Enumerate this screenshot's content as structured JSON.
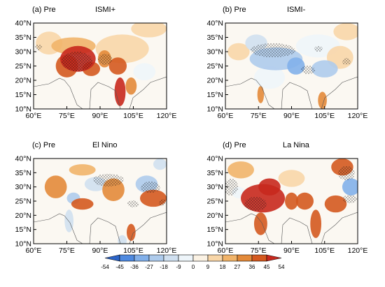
{
  "chart_data": {
    "type": "heatmap",
    "panels": [
      {
        "label": "(a) Pre",
        "title": "ISMI+",
        "blobs": [
          {
            "lon": 80,
            "lat": 27.5,
            "rx": 8,
            "ry": 4.5,
            "v": 45
          },
          {
            "lon": 75,
            "lat": 25,
            "rx": 5,
            "ry": 4,
            "v": 36
          },
          {
            "lon": 86,
            "lat": 24,
            "rx": 4,
            "ry": 2.5,
            "v": 36
          },
          {
            "lon": 92,
            "lat": 27.5,
            "rx": 3,
            "ry": 3,
            "v": 27
          },
          {
            "lon": 98,
            "lat": 25,
            "rx": 4,
            "ry": 3,
            "v": 36
          },
          {
            "lon": 99,
            "lat": 16,
            "rx": 2.5,
            "ry": 5,
            "v": 45
          },
          {
            "lon": 104,
            "lat": 18,
            "rx": 2.5,
            "ry": 3,
            "v": 27
          },
          {
            "lon": 78,
            "lat": 32,
            "rx": 10,
            "ry": 3,
            "v": 18
          },
          {
            "lon": 100,
            "lat": 31,
            "rx": 12,
            "ry": 5,
            "v": 9
          },
          {
            "lon": 67,
            "lat": 33,
            "rx": 6,
            "ry": 4,
            "v": 9
          },
          {
            "lon": 112,
            "lat": 38,
            "rx": 8,
            "ry": 3,
            "v": 9
          },
          {
            "lon": 110,
            "lat": 23,
            "rx": 5,
            "ry": 3,
            "v": -9
          }
        ]
      },
      {
        "label": "(b) Pre",
        "title": "ISMI-",
        "blobs": [
          {
            "lon": 83,
            "lat": 27.5,
            "rx": 12,
            "ry": 4,
            "v": -27
          },
          {
            "lon": 92,
            "lat": 25,
            "rx": 4,
            "ry": 3,
            "v": -36
          },
          {
            "lon": 105,
            "lat": 24,
            "rx": 6,
            "ry": 3,
            "v": -27
          },
          {
            "lon": 74,
            "lat": 33,
            "rx": 5,
            "ry": 3,
            "v": -18
          },
          {
            "lon": 102,
            "lat": 32,
            "rx": 10,
            "ry": 4,
            "v": -9
          },
          {
            "lon": 80,
            "lat": 21,
            "rx": 7,
            "ry": 4,
            "v": -9
          },
          {
            "lon": 76,
            "lat": 15,
            "rx": 1.5,
            "ry": 3,
            "v": 27
          },
          {
            "lon": 104,
            "lat": 13,
            "rx": 2,
            "ry": 3,
            "v": 27
          },
          {
            "lon": 112,
            "lat": 28,
            "rx": 6,
            "ry": 4,
            "v": 9
          },
          {
            "lon": 66,
            "lat": 30,
            "rx": 5,
            "ry": 3,
            "v": 9
          },
          {
            "lon": 115,
            "lat": 37,
            "rx": 6,
            "ry": 3,
            "v": 9
          }
        ]
      },
      {
        "label": "(c) Pre",
        "title": "El Nino",
        "blobs": [
          {
            "lon": 70,
            "lat": 30,
            "rx": 5,
            "ry": 4,
            "v": 27
          },
          {
            "lon": 82,
            "lat": 36,
            "rx": 6,
            "ry": 2,
            "v": 18
          },
          {
            "lon": 96,
            "lat": 29,
            "rx": 5,
            "ry": 4,
            "v": 27
          },
          {
            "lon": 82,
            "lat": 24,
            "rx": 5,
            "ry": 2,
            "v": 36
          },
          {
            "lon": 104,
            "lat": 14,
            "rx": 2,
            "ry": 3,
            "v": 36
          },
          {
            "lon": 114,
            "lat": 26,
            "rx": 6,
            "ry": 3,
            "v": 36
          },
          {
            "lon": 78,
            "lat": 26,
            "rx": 3,
            "ry": 2,
            "v": -27
          },
          {
            "lon": 88,
            "lat": 31,
            "rx": 5,
            "ry": 2.5,
            "v": -18
          },
          {
            "lon": 111,
            "lat": 31,
            "rx": 5,
            "ry": 3,
            "v": -27
          },
          {
            "lon": 117,
            "lat": 38,
            "rx": 3,
            "ry": 2,
            "v": -18
          },
          {
            "lon": 76,
            "lat": 18,
            "rx": 2,
            "ry": 4,
            "v": -18
          },
          {
            "lon": 100,
            "lat": 11,
            "rx": 2,
            "ry": 2,
            "v": -18
          }
        ]
      },
      {
        "label": "(d) Pre",
        "title": "La Nina",
        "blobs": [
          {
            "lon": 77,
            "lat": 26,
            "rx": 10,
            "ry": 5,
            "v": 45
          },
          {
            "lon": 80,
            "lat": 30,
            "rx": 5,
            "ry": 3,
            "v": 45
          },
          {
            "lon": 90,
            "lat": 25,
            "rx": 3,
            "ry": 3,
            "v": 36
          },
          {
            "lon": 96,
            "lat": 25,
            "rx": 4,
            "ry": 3,
            "v": 36
          },
          {
            "lon": 101,
            "lat": 17,
            "rx": 2.5,
            "ry": 5,
            "v": 36
          },
          {
            "lon": 110,
            "lat": 24,
            "rx": 5,
            "ry": 3,
            "v": 36
          },
          {
            "lon": 113,
            "lat": 37,
            "rx": 5,
            "ry": 3,
            "v": 36
          },
          {
            "lon": 76,
            "lat": 17,
            "rx": 3,
            "ry": 4,
            "v": 36
          },
          {
            "lon": 67,
            "lat": 36,
            "rx": 6,
            "ry": 3,
            "v": 18
          },
          {
            "lon": 90,
            "lat": 33,
            "rx": 6,
            "ry": 3,
            "v": 9
          },
          {
            "lon": 117,
            "lat": 30,
            "rx": 4,
            "ry": 3,
            "v": -36
          },
          {
            "lon": 66,
            "lat": 28,
            "rx": 3,
            "ry": 2,
            "v": -9
          }
        ]
      }
    ],
    "lon_ticks": [
      "60°E",
      "75°E",
      "90°E",
      "105°E",
      "120°E"
    ],
    "lat_ticks": [
      "40°N",
      "35°N",
      "30°N",
      "25°N",
      "20°N",
      "15°N",
      "10°N"
    ],
    "lon_range": [
      60,
      120
    ],
    "lat_range": [
      10,
      40
    ],
    "colorbar": {
      "levels": [
        "-54",
        "-45",
        "-36",
        "-27",
        "-18",
        "-9",
        "0",
        "9",
        "18",
        "27",
        "36",
        "45",
        "54"
      ],
      "colors": [
        "#2c64c8",
        "#4f8ae0",
        "#82b0ea",
        "#aecbec",
        "#d0e0f0",
        "#eef5fa",
        "#fbf2e4",
        "#f8d6a8",
        "#f1b46a",
        "#e38a3a",
        "#d4591f",
        "#c8281d"
      ]
    }
  }
}
